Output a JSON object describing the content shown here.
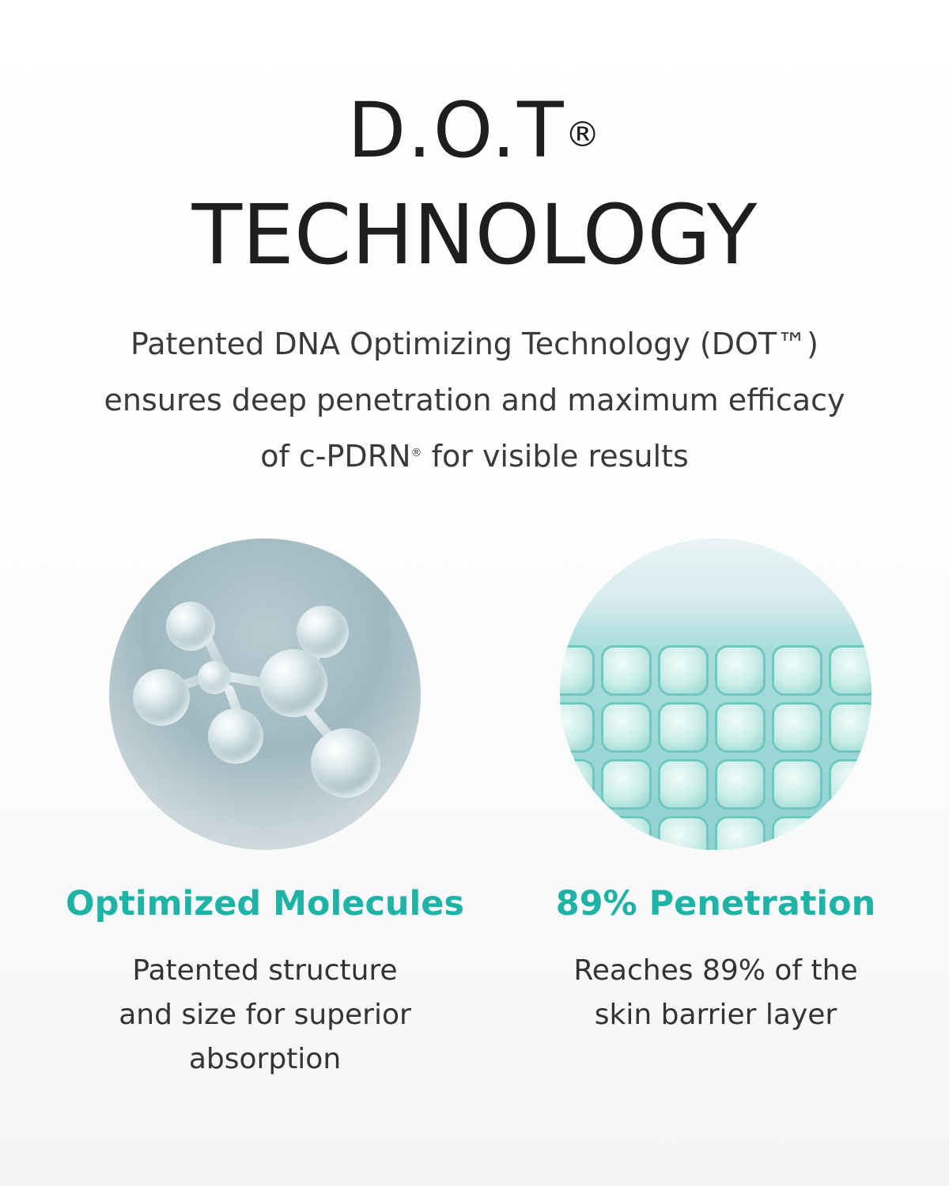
{
  "header": {
    "title_line1": "D.O.T",
    "title_mark": "®",
    "title_line2": "TECHNOLOGY"
  },
  "description": {
    "line1": "Patented DNA Optimizing Technology (DOT™)",
    "line2": "ensures deep penetration and maximum efficacy",
    "line3_pre": "of c-PDRN",
    "line3_mark": "®",
    "line3_post": " for visible results"
  },
  "features": [
    {
      "image": "molecule-illustration",
      "title": "Optimized Molecules",
      "lines": [
        "Patented structure",
        "and size for superior",
        "absorption"
      ]
    },
    {
      "image": "skin-cell-grid-illustration",
      "title": "89% Penetration",
      "lines": [
        "Reaches 89% of the",
        "skin barrier layer"
      ]
    }
  ],
  "colors": {
    "accent": "#1fb3a6",
    "title": "#1e1e1e",
    "text": "#333333"
  }
}
